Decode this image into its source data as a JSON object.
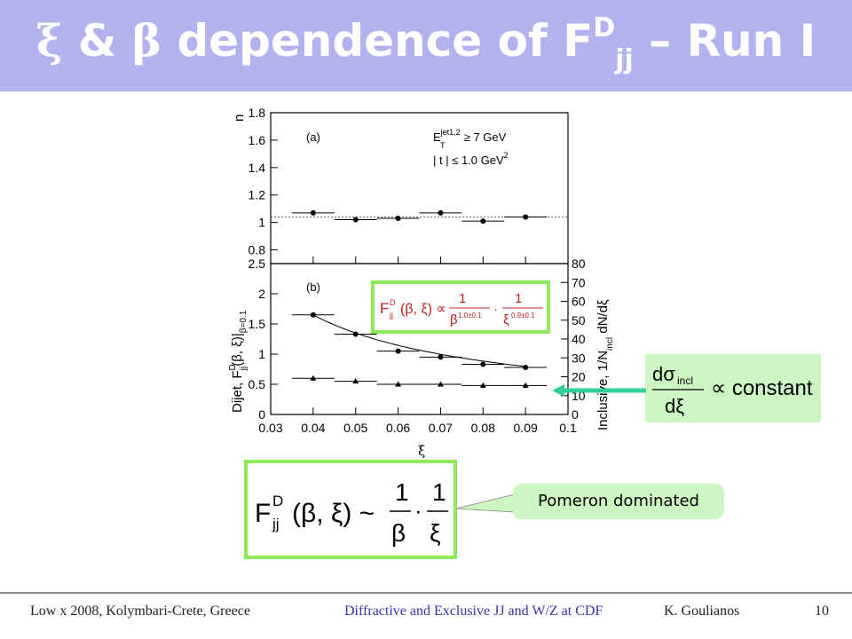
{
  "title": {
    "xi": "ξ",
    "amp": " & ",
    "beta": "β",
    "text": " dependence of F",
    "sup": "D",
    "sub": "jj",
    "tail": " – Run I"
  },
  "panel_a": {
    "label": "(a)",
    "ylabel": "n",
    "cuts": [
      "E",
      "jet1,2",
      "T",
      "≥ 7 GeV",
      "| t | ≤ 1.0 GeV",
      "2"
    ]
  },
  "panel_b": {
    "label": "(b)",
    "ylabel_left": "Dijet, F",
    "ylabel_left_rest": "(β, ξ)|",
    "ylabel_sup": "D",
    "ylabel_sub": "jj",
    "ylabel_sub2": "β=0.1",
    "ylabel_right": "Inclusive, 1/N",
    "ylabel_right_sub": "incl",
    "ylabel_right_tail": " dN/dξ"
  },
  "xlabel": "ξ",
  "formulas": {
    "top": {
      "F": "F",
      "sup": "D",
      "sub": "jj",
      "args": "(β, ξ) ∝",
      "num1": "1",
      "den1": "β",
      "den1_exp": "1.0±0.1",
      "dot": "·",
      "num2": "1",
      "den2": "ξ",
      "den2_exp": "0.9±0.1"
    },
    "bottom": {
      "F": "F",
      "sup": "D",
      "sub": "jj",
      "args": "(β, ξ) ~",
      "num1": "1",
      "den1": "β",
      "dot": "·",
      "num2": "1",
      "den2": "ξ"
    },
    "right": {
      "num": "dσ",
      "num_sub": "incl",
      "den": "dξ",
      "rel": "∝ constant"
    }
  },
  "callout": "Pomeron dominated",
  "footer": {
    "left": "Low x 2008, Kolymbari-Crete, Greece",
    "mid": "Diffractive and Exclusive JJ and W/Z at CDF",
    "author": "K.  Goulianos",
    "page": "10"
  },
  "colors": {
    "title_bg": "#b2b2ee",
    "box_border": "#8fea5a",
    "box_fill": "#ccf7c2",
    "arrow": "#2fcf9a",
    "formula_top_text": "#c02020"
  },
  "chart_data": [
    {
      "type": "scatter",
      "panel": "(a)",
      "ylabel": "n",
      "xlim": [
        0.03,
        0.1
      ],
      "ylim": [
        0.7,
        1.8
      ],
      "x_ticks": [
        0.03,
        0.04,
        0.05,
        0.06,
        0.07,
        0.08,
        0.09,
        0.1
      ],
      "y_ticks": [
        0.8,
        1,
        1.2,
        1.4,
        1.6,
        1.8
      ],
      "x": [
        0.04,
        0.05,
        0.06,
        0.07,
        0.08,
        0.09
      ],
      "y": [
        1.07,
        1.02,
        1.03,
        1.07,
        1.01,
        1.04
      ],
      "reference_line": 1.04
    },
    {
      "type": "scatter",
      "panel": "(b)",
      "xlabel": "ξ",
      "xlim": [
        0.03,
        0.1
      ],
      "ylim_left": [
        0,
        2.5
      ],
      "ylim_right": [
        0,
        80
      ],
      "x_ticks": [
        0.03,
        0.04,
        0.05,
        0.06,
        0.07,
        0.08,
        0.09,
        0.1
      ],
      "x_tick_labels": [
        "0.03",
        "0.04",
        "0.05",
        "0.06",
        "0.07",
        "0.08",
        "0.09",
        "0.1"
      ],
      "y_ticks_left": [
        0,
        0.5,
        1,
        1.5,
        2,
        2.5
      ],
      "y_tick_labels_left": [
        "0",
        "0.5",
        "1",
        "1.5",
        "2",
        "2.5"
      ],
      "y_ticks_right": [
        0,
        10,
        20,
        30,
        40,
        50,
        60,
        70,
        80
      ],
      "series": [
        {
          "marker": "circle",
          "axis": "left",
          "x": [
            0.04,
            0.05,
            0.06,
            0.07,
            0.08,
            0.09
          ],
          "y": [
            1.65,
            1.33,
            1.05,
            0.95,
            0.83,
            0.78
          ]
        },
        {
          "marker": "triangle",
          "axis": "left",
          "x": [
            0.04,
            0.05,
            0.06,
            0.07,
            0.08,
            0.09
          ],
          "y": [
            0.6,
            0.55,
            0.5,
            0.5,
            0.48,
            0.48
          ]
        }
      ]
    }
  ]
}
